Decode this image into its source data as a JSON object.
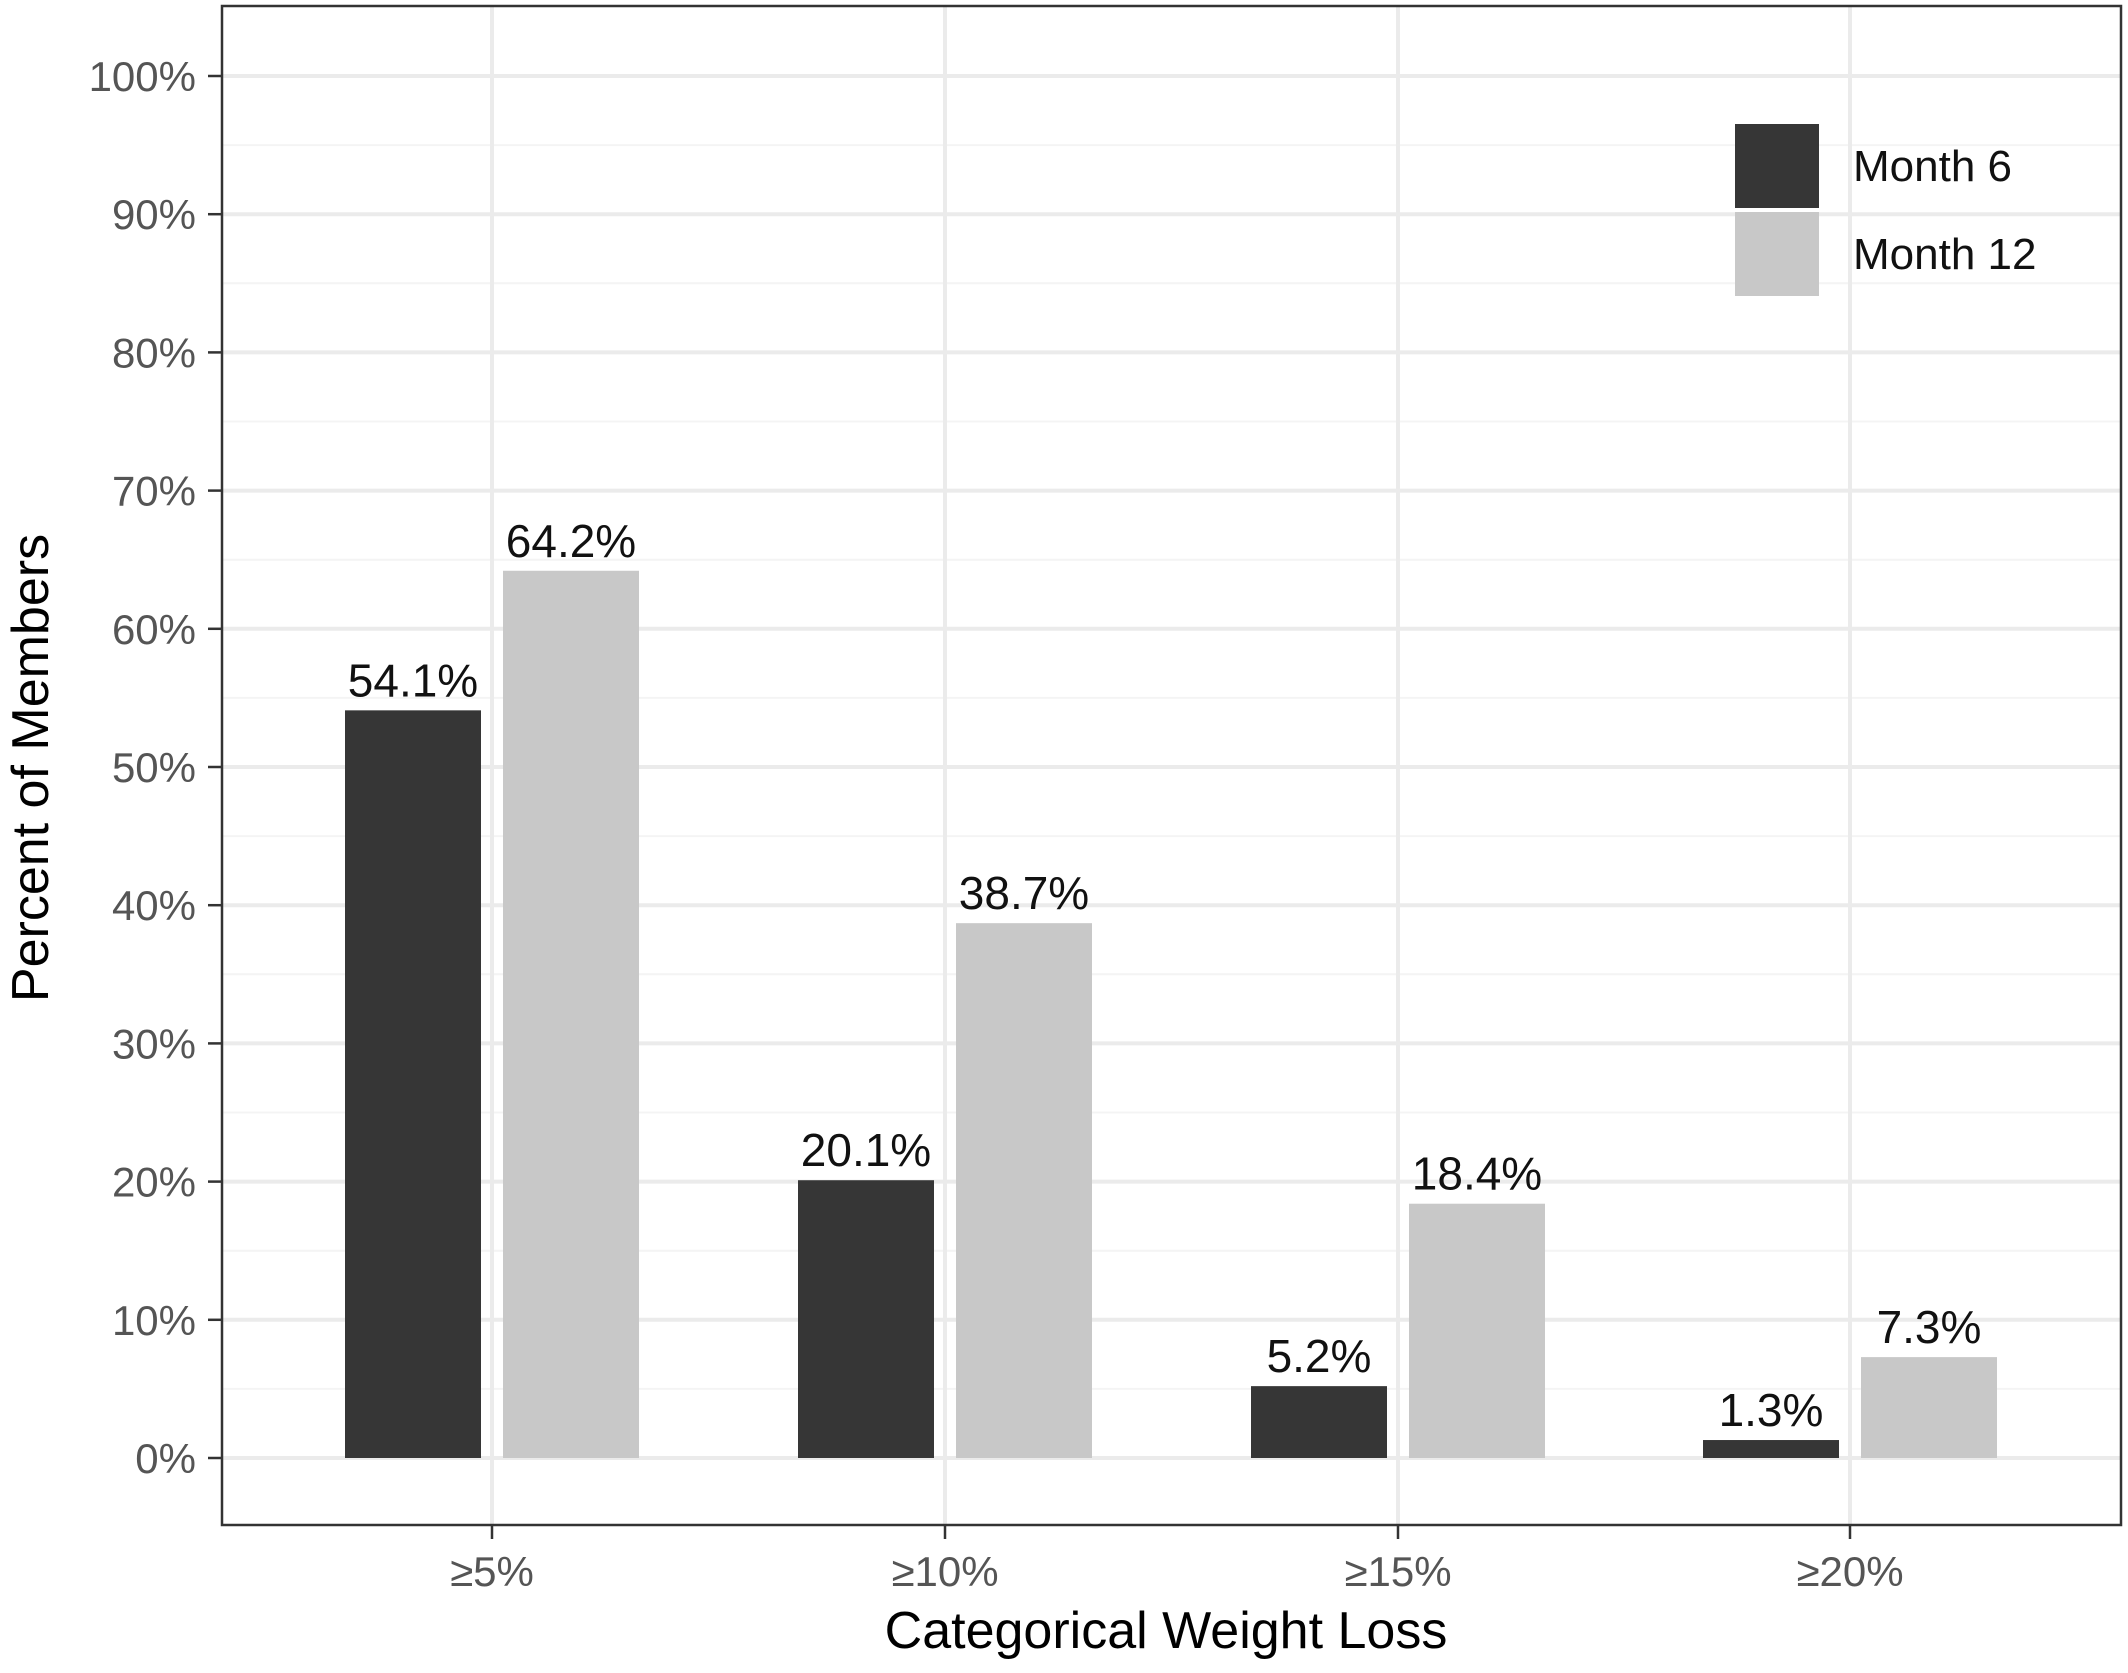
{
  "chart_data": {
    "type": "bar",
    "title": "",
    "xlabel": "Categorical Weight Loss",
    "ylabel": "Percent of Members",
    "categories": [
      "≥5%",
      "≥10%",
      "≥15%",
      "≥20%"
    ],
    "series": [
      {
        "name": "Month 6",
        "color": "#363636",
        "values": [
          54.1,
          20.1,
          5.2,
          1.3
        ],
        "labels": [
          "54.1%",
          "20.1%",
          "5.2%",
          "1.3%"
        ]
      },
      {
        "name": "Month 12",
        "color": "#c8c8c8",
        "values": [
          64.2,
          38.7,
          18.4,
          7.3
        ],
        "labels": [
          "64.2%",
          "38.7%",
          "18.4%",
          "7.3%"
        ]
      }
    ],
    "ylim": [
      0,
      100
    ],
    "yticks": [
      0,
      10,
      20,
      30,
      40,
      50,
      60,
      70,
      80,
      90,
      100
    ],
    "ytick_labels": [
      "0%",
      "10%",
      "20%",
      "30%",
      "40%",
      "50%",
      "60%",
      "70%",
      "80%",
      "90%",
      "100%"
    ],
    "grid": true,
    "legend": "top-right"
  }
}
